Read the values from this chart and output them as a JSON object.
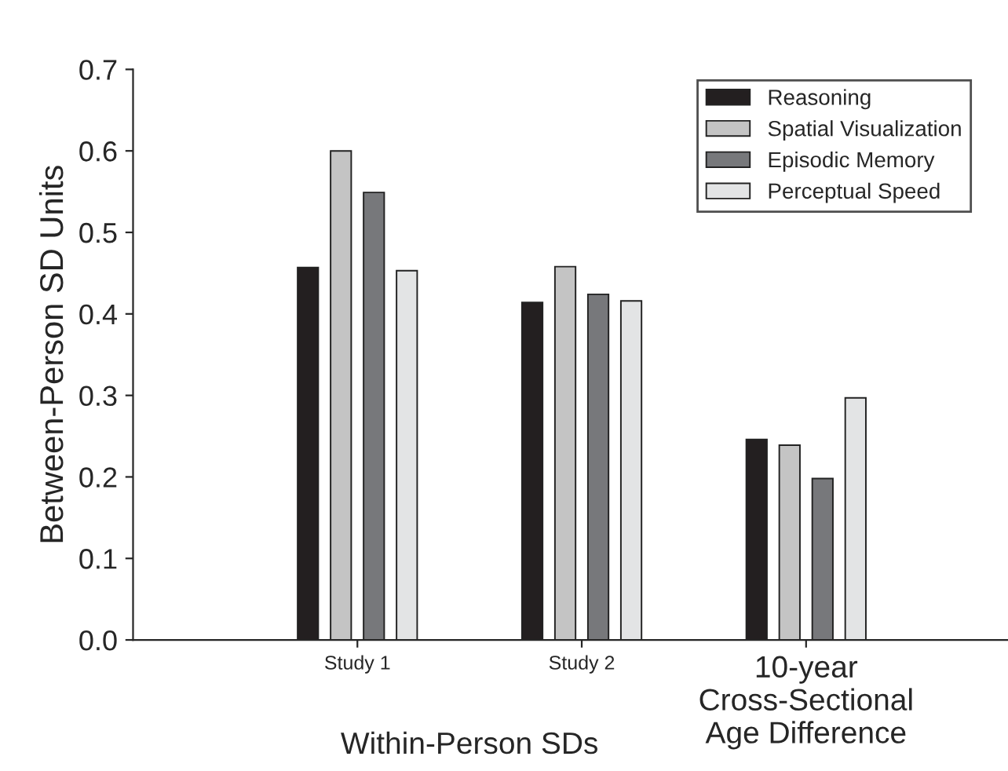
{
  "chart_data": {
    "type": "bar",
    "ylabel": "Between-Person SD Units",
    "categories": [
      "Study 1",
      "Study 2",
      "10-year\nCross-Sectional\nAge Difference"
    ],
    "series": [
      {
        "name": "Reasoning",
        "color": "#231f20",
        "values": [
          0.457,
          0.414,
          0.246
        ]
      },
      {
        "name": "Spatial Visualization",
        "color": "#c4c4c4",
        "values": [
          0.6,
          0.458,
          0.239
        ]
      },
      {
        "name": "Episodic Memory",
        "color": "#77787b",
        "values": [
          0.549,
          0.424,
          0.198
        ]
      },
      {
        "name": "Perceptual Speed",
        "color": "#e3e4e5",
        "values": [
          0.453,
          0.416,
          0.297
        ]
      }
    ],
    "ylim": [
      0,
      0.7
    ],
    "yticks": [
      {
        "value": 0,
        "label": "0.0"
      },
      0.1,
      0.2,
      0.3,
      0.4,
      0.5,
      0.6,
      0.7
    ],
    "annotations": [
      "Within-Person SDs"
    ],
    "grid": false,
    "legend": "top right"
  }
}
